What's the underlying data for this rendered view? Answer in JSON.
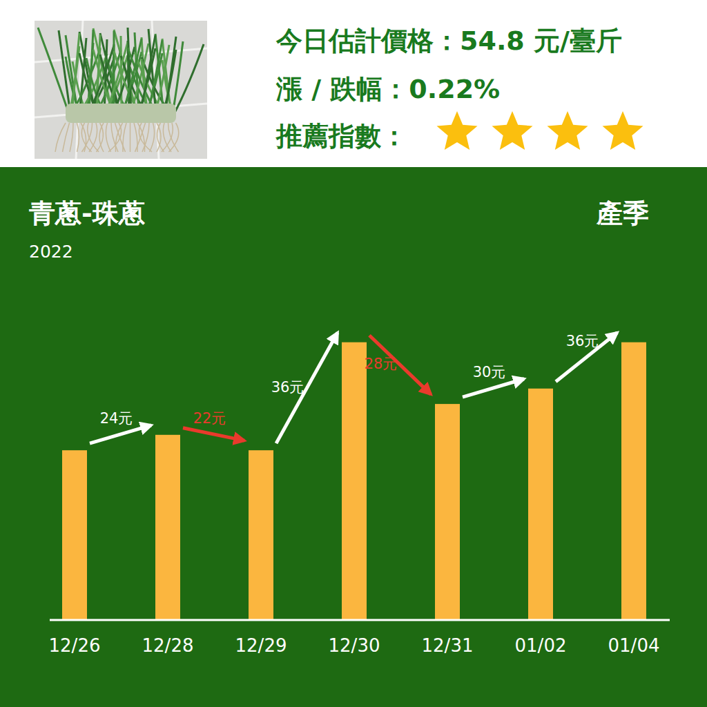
{
  "header": {
    "price": "今日估計價格：54.8 元/臺斤",
    "change": "漲 / 跌幅：0.22%",
    "rating_label": "推薦指數：",
    "rating": 4
  },
  "chart_data": {
    "type": "bar",
    "title": "青蔥-珠蔥",
    "subtitle": "2022",
    "annotations": [
      {
        "text": "產季"
      }
    ],
    "categories": [
      "12/26",
      "12/28",
      "12/29",
      "12/30",
      "12/31",
      "01/02",
      "01/04"
    ],
    "values": [
      22,
      24,
      22,
      36,
      28,
      30,
      36
    ],
    "value_labels": [
      null,
      "24元",
      "22元",
      "36元",
      "28元",
      "30元",
      "36元"
    ],
    "data_labels": true,
    "color": "#fbb63f",
    "ylim": [
      0,
      40
    ],
    "tick_labels": "x",
    "grid": false
  }
}
